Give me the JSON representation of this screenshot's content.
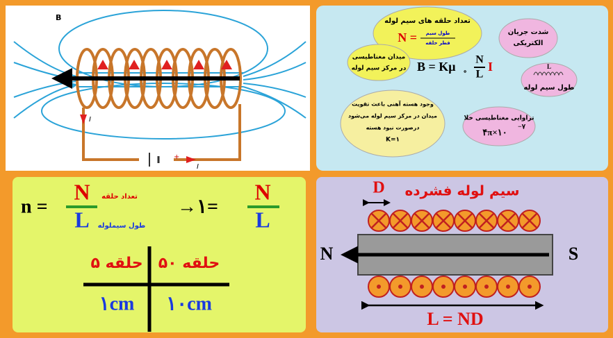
{
  "panel_1": {
    "field_label": "B",
    "current_top": "I",
    "battery_plus": "+",
    "current_bottom": "I"
  },
  "panel_2": {
    "turns_bubble": {
      "title": "تعداد حلقه های سیم لوله",
      "lhs": "N =",
      "numerator": "طول سیم",
      "denominator": "قطر حلقه"
    },
    "current_bubble": [
      "شدت جریان",
      "الکتریکی"
    ],
    "field_bubble": [
      "میدان مغناطیسی",
      "در مرکز سیم لوله"
    ],
    "formula": {
      "lhs": "B = Kμ",
      "sub": "∘",
      "numerator": "N",
      "denominator": "L",
      "current": "I"
    },
    "length_bubble": {
      "symbol": "L",
      "text": "طول سیم لوله"
    },
    "core_bubble": [
      "وجود هسته آهنی باعث تقویت",
      "میدان در مرکز سیم لوله می‌شود",
      "درصورت نبود هسته",
      "K=۱"
    ],
    "permeability_bubble": {
      "title": "تراوایی مغناطیسی خلا",
      "value": "۴π×۱۰",
      "exponent": "−۷"
    }
  },
  "panel_3": {
    "density": {
      "lhs": "n =",
      "numerator": "N",
      "denominator": "L",
      "numerator_note": "تعداد حلقه",
      "denominator_note": "طول سیملوله"
    },
    "example": {
      "lhs": "→۱=",
      "numerator": "N",
      "denominator": "L"
    },
    "table": {
      "turns_left": "۵ حلقه",
      "turns_right": "۵۰ حلقه",
      "length_left": "۱cm",
      "length_right": "۱۰cm"
    }
  },
  "panel_4": {
    "title": "سیم لوله فشرده",
    "diameter": "D",
    "north": "N",
    "south": "S",
    "length_formula": "L = ND"
  }
}
